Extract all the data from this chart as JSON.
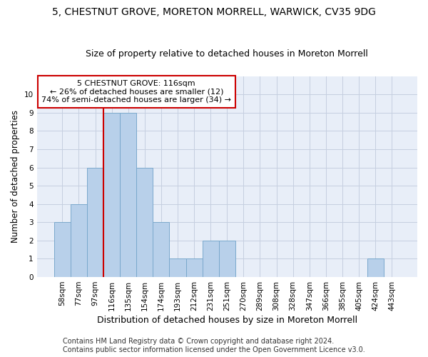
{
  "title": "5, CHESTNUT GROVE, MORETON MORRELL, WARWICK, CV35 9DG",
  "subtitle": "Size of property relative to detached houses in Moreton Morrell",
  "xlabel": "Distribution of detached houses by size in Moreton Morrell",
  "ylabel": "Number of detached properties",
  "categories": [
    "58sqm",
    "77sqm",
    "97sqm",
    "116sqm",
    "135sqm",
    "154sqm",
    "174sqm",
    "193sqm",
    "212sqm",
    "231sqm",
    "251sqm",
    "270sqm",
    "289sqm",
    "308sqm",
    "328sqm",
    "347sqm",
    "366sqm",
    "385sqm",
    "405sqm",
    "424sqm",
    "443sqm"
  ],
  "values": [
    3,
    4,
    6,
    9,
    9,
    6,
    3,
    1,
    1,
    2,
    2,
    0,
    0,
    0,
    0,
    0,
    0,
    0,
    0,
    1,
    0
  ],
  "bar_color": "#b8d0ea",
  "bar_edge_color": "#7aa8cc",
  "property_line_index": 3,
  "property_label": "5 CHESTNUT GROVE: 116sqm",
  "annotation_line1": "← 26% of detached houses are smaller (12)",
  "annotation_line2": "74% of semi-detached houses are larger (34) →",
  "annotation_box_color": "#ffffff",
  "annotation_box_edge": "#cc0000",
  "property_line_color": "#cc0000",
  "ylim": [
    0,
    11
  ],
  "yticks": [
    0,
    1,
    2,
    3,
    4,
    5,
    6,
    7,
    8,
    9,
    10,
    11
  ],
  "footer1": "Contains HM Land Registry data © Crown copyright and database right 2024.",
  "footer2": "Contains public sector information licensed under the Open Government Licence v3.0.",
  "background_color": "#e8eef8",
  "grid_color": "#c5cfe0",
  "title_fontsize": 10,
  "subtitle_fontsize": 9,
  "tick_fontsize": 7.5,
  "ylabel_fontsize": 8.5,
  "xlabel_fontsize": 9,
  "footer_fontsize": 7,
  "annotation_fontsize": 8
}
